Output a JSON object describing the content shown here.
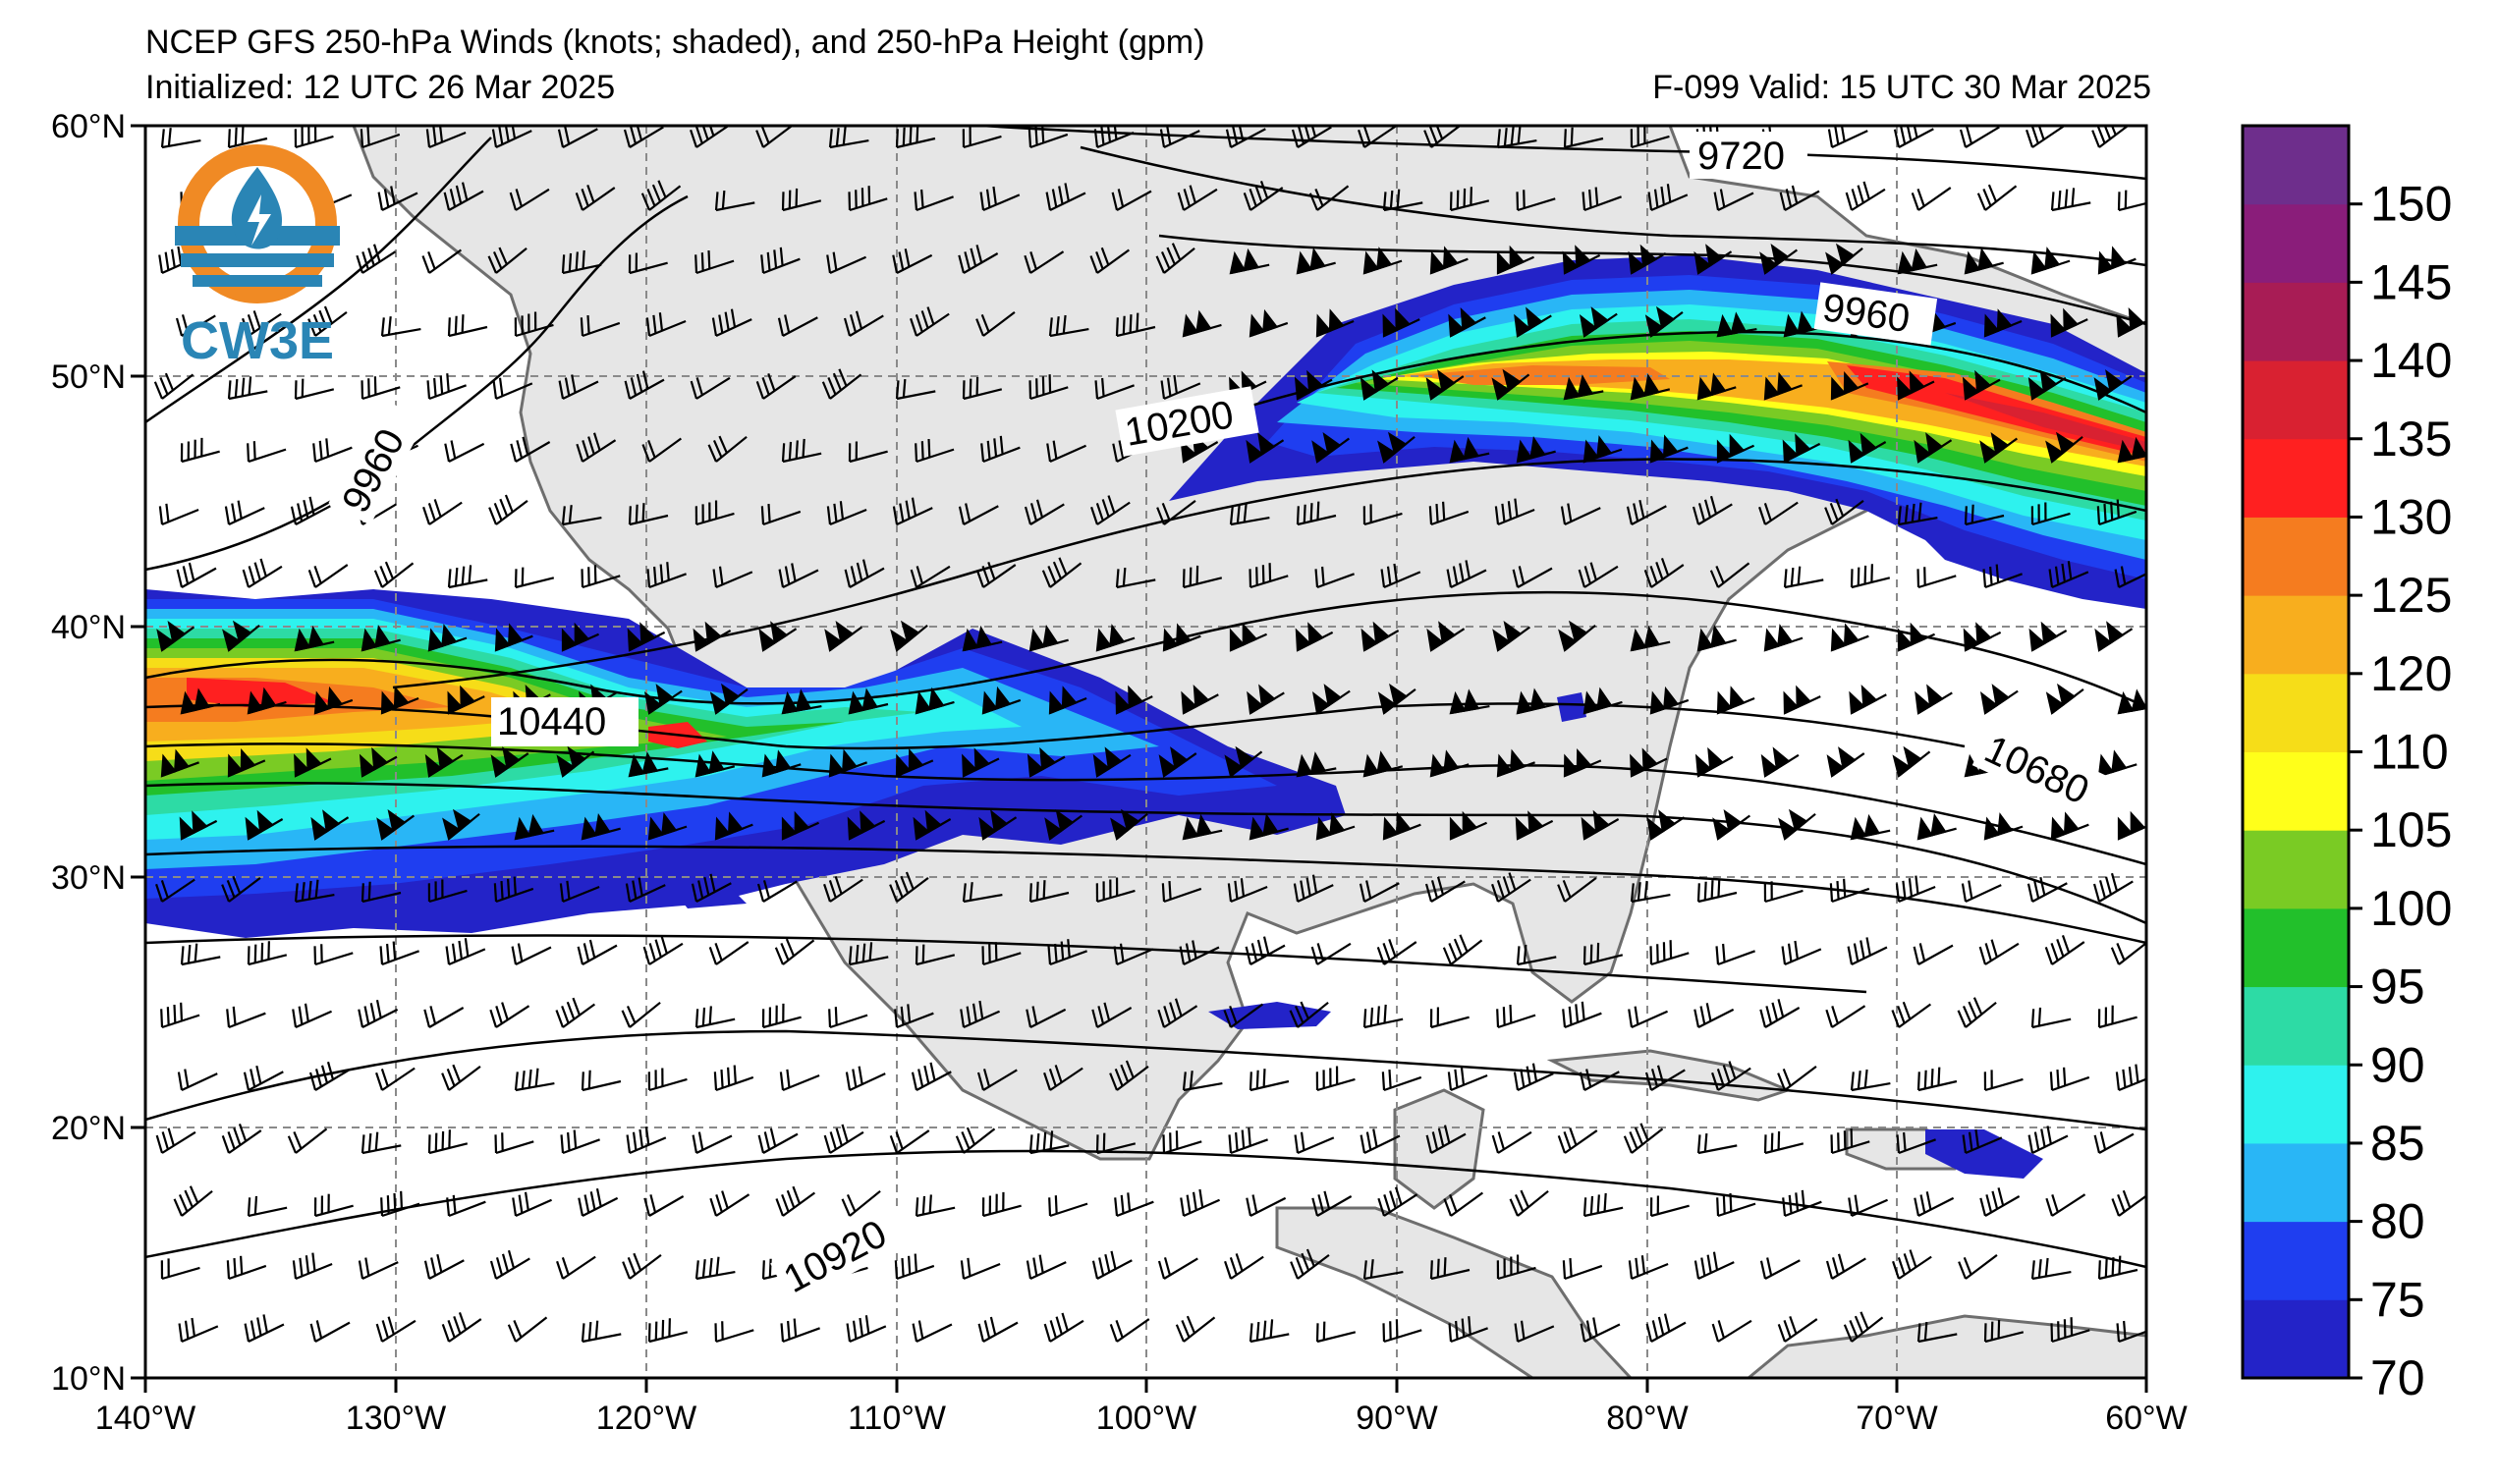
{
  "header": {
    "title": "NCEP GFS 250-hPa Winds (knots; shaded), and 250-hPa Height (gpm)",
    "initialized": "Initialized: 12 UTC 26 Mar 2025",
    "valid": "F-099  Valid: 15 UTC 30 Mar 2025"
  },
  "logo": {
    "text": "CW3E",
    "colors": {
      "orange": "#f08a24",
      "blue": "#2a85b5"
    }
  },
  "axes": {
    "lon_labels": [
      "140°W",
      "130°W",
      "120°W",
      "110°W",
      "100°W",
      "90°W",
      "80°W",
      "70°W",
      "60°W"
    ],
    "lat_labels": [
      "60°N",
      "50°N",
      "40°N",
      "30°N",
      "20°N",
      "10°N"
    ]
  },
  "contours": {
    "labels": [
      "9720",
      "9960",
      "9960",
      "10200",
      "10440",
      "10680",
      "10920"
    ]
  },
  "colorbar": {
    "ticks": [
      "150",
      "145",
      "140",
      "135",
      "130",
      "125",
      "120",
      "110",
      "105",
      "100",
      "95",
      "90",
      "85",
      "80",
      "75",
      "70"
    ],
    "colors": [
      "#2323c8",
      "#1f3ef0",
      "#29b6f6",
      "#2ef2ee",
      "#2ddba5",
      "#22c02b",
      "#7acb24",
      "#ffff1a",
      "#f6dd18",
      "#f8ae1e",
      "#f57c1f",
      "#ff2020",
      "#d92131",
      "#a81c55",
      "#8a1d7a",
      "#6e2e8c"
    ]
  }
}
